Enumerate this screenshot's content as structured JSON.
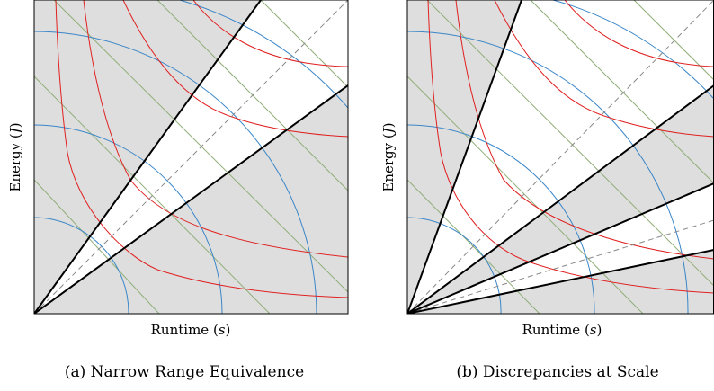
{
  "panels": [
    {
      "id": "a",
      "caption": "(a) Narrow Range Equivalence",
      "xlabel": "Runtime",
      "xunit": "s",
      "ylabel": "Energy",
      "yunit": "J",
      "shaded_band_slopes": [
        0.53,
        1.52
      ],
      "identity_slope": 1.0
    },
    {
      "id": "b",
      "caption": "(b) Discrepancies at Scale",
      "xlabel": "Runtime",
      "xunit": "s",
      "ylabel": "Energy",
      "yunit": "J",
      "shaded_band_slopes": [
        [
          0.15,
          0.3
        ],
        [
          0.45,
          0.8
        ],
        [
          1.15,
          4.0
        ]
      ],
      "identity_slope": 1.0,
      "extra_dashed_slope": 0.32
    }
  ],
  "colors": {
    "shade": "#dedede",
    "energy_contour": "#3a86c8",
    "power_contour": "#8fae78",
    "edp_contour": "#e02020",
    "band_edge": "#000000",
    "identity_line": "#888888"
  }
}
